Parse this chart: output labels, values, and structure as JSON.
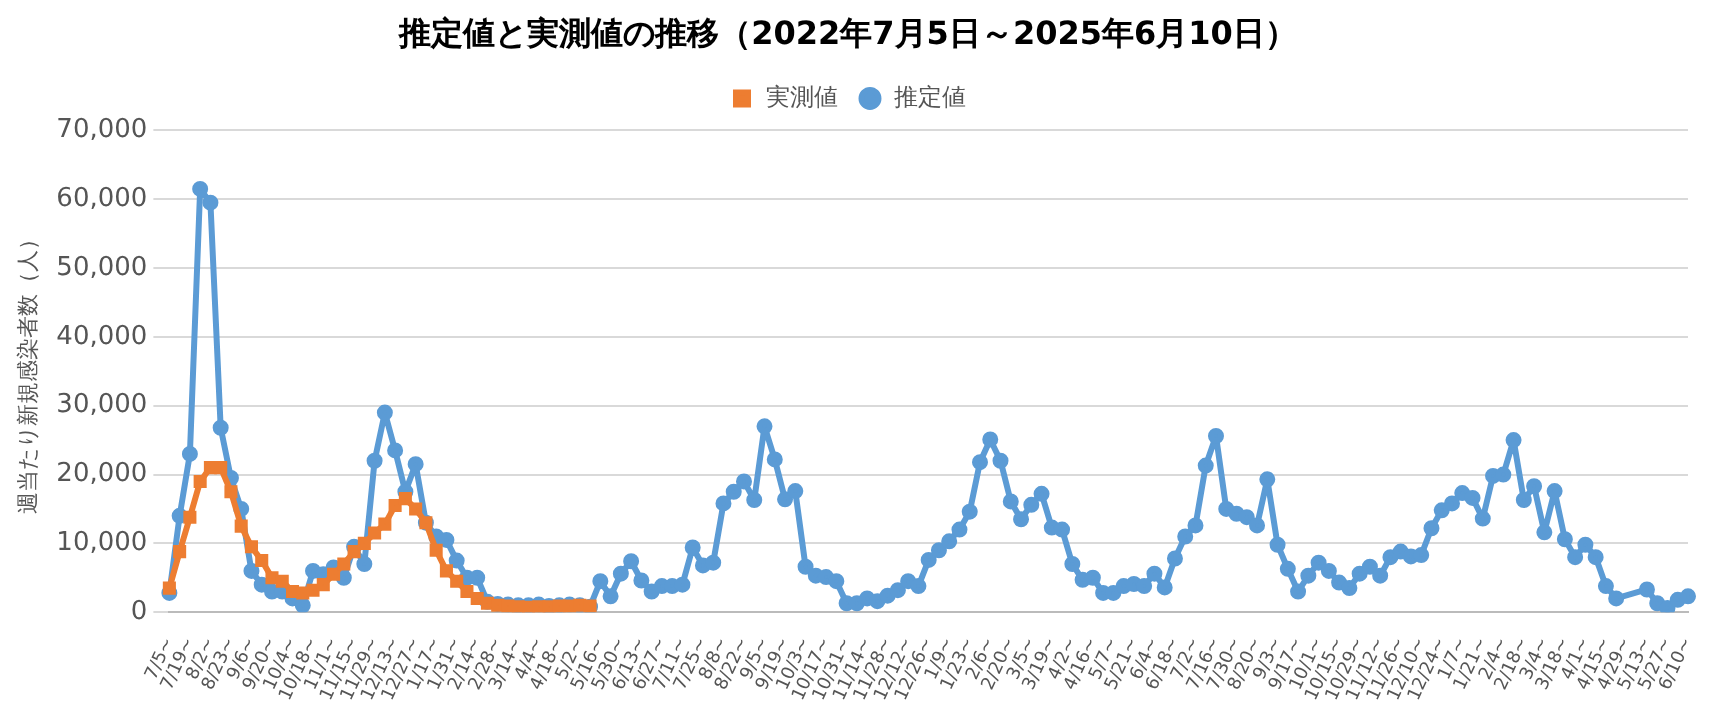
{
  "chart_data": {
    "type": "line",
    "title": "推定値と実測値の推移（2022年7月5日～2025年6月10日）",
    "ylabel": "週当たり新規感染者数（人）",
    "categories": [
      "7/5~",
      null,
      "7/19~",
      null,
      "8/2~",
      null,
      "8/23~",
      null,
      "9/6~",
      null,
      "9/20~",
      null,
      "10/4~",
      null,
      "10/18~",
      null,
      "11/1~",
      null,
      "11/15~",
      null,
      "11/29~",
      null,
      "12/13~",
      null,
      "12/27~",
      null,
      "1/17~",
      null,
      "1/31~",
      null,
      "2/14~",
      null,
      "2/28~",
      null,
      "3/14~",
      null,
      "4/4~",
      null,
      "4/18~",
      null,
      "5/2~",
      null,
      "5/16~",
      null,
      "5/30~",
      null,
      "6/13~",
      null,
      "6/27~",
      null,
      "7/11~",
      null,
      "7/25~",
      null,
      "8/8~",
      null,
      "8/22~",
      null,
      "9/5~",
      null,
      "9/19~",
      null,
      "10/3~",
      null,
      "10/17~",
      null,
      "10/31~",
      null,
      "11/14~",
      null,
      "11/28~",
      null,
      "12/12~",
      null,
      "12/26~",
      null,
      "1/9~",
      null,
      "1/23~",
      null,
      "2/6~",
      null,
      "2/20~",
      null,
      "3/5~",
      null,
      "3/19~",
      null,
      "4/2~",
      null,
      "4/16~",
      null,
      "5/7~",
      null,
      "5/21~",
      null,
      "6/4~",
      null,
      "6/18~",
      null,
      "7/2~",
      null,
      "7/16~",
      null,
      "7/30~",
      null,
      "8/20~",
      null,
      "9/3~",
      null,
      "9/17~",
      null,
      "10/1~",
      null,
      "10/15~",
      null,
      "10/29~",
      null,
      "11/12~",
      null,
      "11/26~",
      null,
      "12/10~",
      null,
      "12/24~",
      null,
      "1/7~",
      null,
      "1/21~",
      null,
      "2/4~",
      null,
      "2/18~",
      null,
      "3/4~",
      null,
      "3/18~",
      null,
      "4/1~",
      null,
      "4/15~",
      null,
      "4/29~",
      null,
      "5/13~",
      null,
      "5/27~",
      null,
      "6/10~"
    ],
    "series": [
      {
        "name": "推定値",
        "color": "#5b9bd5",
        "marker": "circle",
        "values": [
          2800,
          14000,
          23000,
          61500,
          59500,
          26800,
          19500,
          15000,
          6000,
          4000,
          3000,
          3000,
          2000,
          1000,
          6000,
          5500,
          6500,
          5000,
          9500,
          7000,
          22000,
          29000,
          23500,
          17500,
          21500,
          13000,
          11000,
          10500,
          7500,
          5000,
          5000,
          1500,
          1200,
          1100,
          1000,
          1000,
          1100,
          900,
          1000,
          1100,
          1000,
          800,
          4500,
          2300,
          5600,
          7400,
          4600,
          3000,
          3800,
          3800,
          4000,
          9400,
          6800,
          7200,
          15800,
          17500,
          19000,
          16300,
          27000,
          22200,
          16400,
          17600,
          6600,
          5300,
          5100,
          4500,
          1300,
          1300,
          2000,
          1600,
          2400,
          3200,
          4500,
          3800,
          7600,
          9000,
          10300,
          12000,
          14600,
          21800,
          25100,
          22000,
          16100,
          13500,
          15600,
          17200,
          12300,
          12000,
          7000,
          4700,
          5000,
          2800,
          2800,
          3800,
          4100,
          3800,
          5600,
          3600,
          7800,
          11000,
          12600,
          21300,
          25600,
          15000,
          14300,
          13800,
          12600,
          19300,
          9800,
          6300,
          3000,
          5300,
          7200,
          6000,
          4300,
          3500,
          5600,
          6600,
          5300,
          8000,
          8800,
          8100,
          8300,
          12200,
          14800,
          15800,
          17300,
          16600,
          13600,
          19800,
          20000,
          25000,
          16300,
          18300,
          11600,
          17600,
          10600,
          8000,
          9800,
          8000,
          3800,
          2000,
          null,
          null,
          3300,
          1300,
          600,
          1800,
          2300
        ]
      },
      {
        "name": "実測値",
        "color": "#ed7d31",
        "marker": "square",
        "values": [
          3500,
          8800,
          13800,
          19000,
          21000,
          21000,
          17500,
          12500,
          9500,
          7500,
          5000,
          4500,
          3000,
          2800,
          3200,
          4000,
          5500,
          7000,
          8800,
          10000,
          11500,
          12800,
          15500,
          16500,
          15000,
          13000,
          9000,
          6000,
          4500,
          3000,
          2000,
          1300,
          1000,
          900,
          800,
          700,
          800,
          800,
          900,
          900,
          1000,
          900,
          null,
          null,
          null,
          null,
          null,
          null,
          null,
          null,
          null,
          null,
          null,
          null,
          null,
          null,
          null,
          null,
          null,
          null,
          null,
          null,
          null,
          null,
          null,
          null,
          null,
          null,
          null,
          null,
          null,
          null,
          null,
          null,
          null,
          null,
          null,
          null,
          null,
          null,
          null,
          null,
          null,
          null,
          null,
          null,
          null,
          null,
          null,
          null,
          null,
          null,
          null,
          null,
          null,
          null,
          null,
          null,
          null,
          null,
          null,
          null,
          null,
          null,
          null,
          null,
          null,
          null,
          null,
          null,
          null,
          null,
          null,
          null,
          null,
          null,
          null,
          null,
          null,
          null,
          null,
          null,
          null,
          null,
          null,
          null,
          null,
          null,
          null,
          null,
          null,
          null,
          null,
          null,
          null,
          null,
          null,
          null,
          null,
          null,
          null,
          null,
          null,
          null,
          null,
          null,
          null,
          null,
          null
        ]
      }
    ],
    "ylim": [
      0,
      70000
    ],
    "yticks": [
      {
        "value": 0,
        "label": "0"
      },
      {
        "value": 10000,
        "label": "10,000"
      },
      {
        "value": 20000,
        "label": "20,000"
      },
      {
        "value": 30000,
        "label": "30,000"
      },
      {
        "value": 40000,
        "label": "40,000"
      },
      {
        "value": 50000,
        "label": "50,000"
      },
      {
        "value": 60000,
        "label": "60,000"
      },
      {
        "value": 70000,
        "label": "70,000"
      }
    ],
    "grid": "y",
    "legend": "top",
    "line_style": "solid"
  }
}
